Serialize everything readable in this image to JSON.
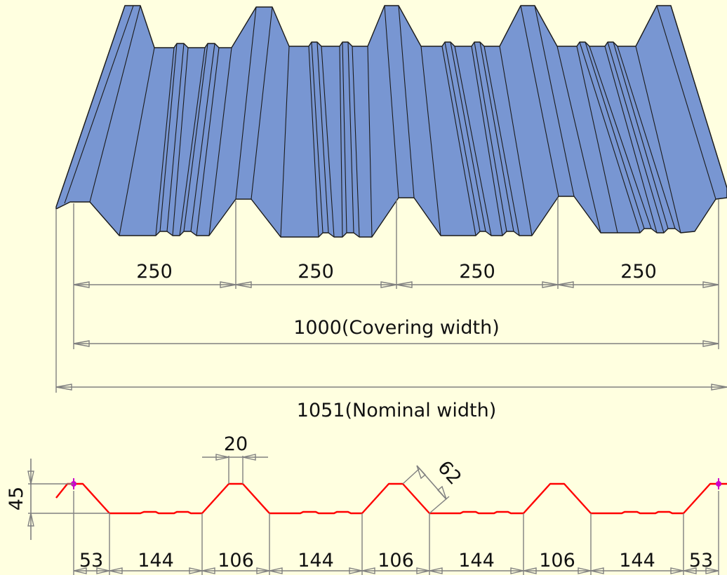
{
  "colors": {
    "background": "#FFFFE0",
    "sheet": "#7896D2",
    "profile": "#FF0000",
    "dimension": "#808080",
    "marker": "#CC00CC"
  },
  "upper_dimensions": {
    "rib_spacing": [
      "250",
      "250",
      "250",
      "250"
    ],
    "covering_width": "1000(Covering width)",
    "nominal_width": "1051(Nominal width)"
  },
  "profile_dimensions": {
    "height": "45",
    "crest_width": "20",
    "slope_length": "62",
    "bottom": [
      "53",
      "144",
      "106",
      "144",
      "106",
      "144",
      "106",
      "144",
      "53"
    ]
  }
}
